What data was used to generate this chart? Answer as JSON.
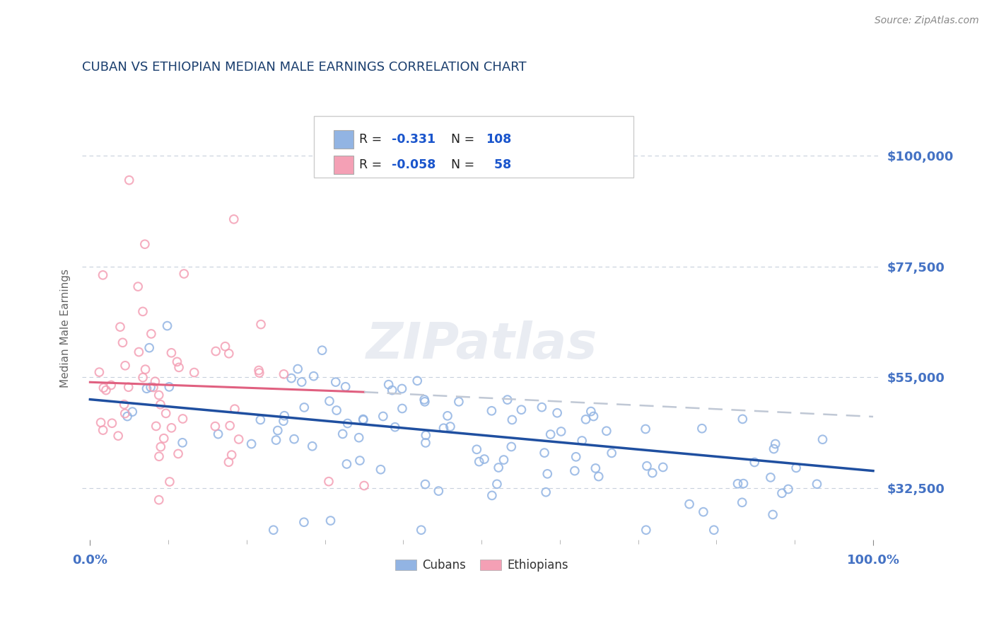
{
  "title": "CUBAN VS ETHIOPIAN MEDIAN MALE EARNINGS CORRELATION CHART",
  "source": "Source: ZipAtlas.com",
  "ylabel": "Median Male Earnings",
  "xlim": [
    -1.0,
    101.0
  ],
  "ylim": [
    22000,
    108000
  ],
  "yticks": [
    32500,
    55000,
    77500,
    100000
  ],
  "ytick_labels": [
    "$32,500",
    "$55,000",
    "$77,500",
    "$100,000"
  ],
  "title_color": "#1a3e6e",
  "axis_color": "#4472c4",
  "background_color": "#ffffff",
  "grid_color": "#c8d0dc",
  "cuban_color": "#92b4e3",
  "ethiopian_color": "#f4a0b5",
  "cuban_line_color": "#1f4fa0",
  "ethiopian_line_color": "#e06080",
  "dashed_line_color": "#c0c8d5",
  "legend_r_cuban": "-0.331",
  "legend_n_cuban": "108",
  "legend_r_ethiopian": "-0.058",
  "legend_n_ethiopian": "58",
  "cuban_line_x0": 0,
  "cuban_line_y0": 50500,
  "cuban_line_x1": 100,
  "cuban_line_y1": 36000,
  "eth_solid_x0": 0,
  "eth_solid_y0": 54000,
  "eth_solid_x1": 35,
  "eth_solid_y1": 52000,
  "eth_dash_x0": 35,
  "eth_dash_y0": 52000,
  "eth_dash_x1": 100,
  "eth_dash_y1": 47000,
  "watermark": "ZIPatlas"
}
